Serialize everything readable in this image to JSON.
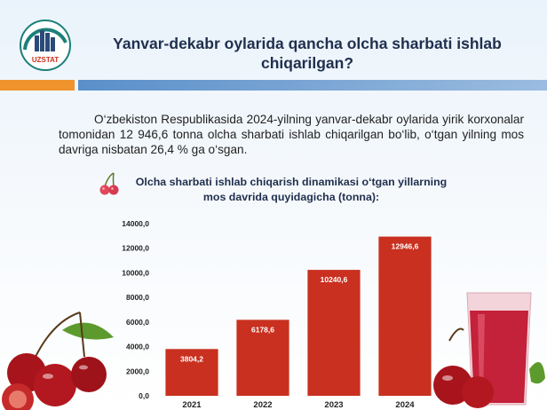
{
  "header": {
    "logo_text": "UZSTAT",
    "title": "Yanvar-dekabr oylarida qancha olcha sharbati ishlab chiqarilgan?"
  },
  "intro": {
    "text": "O‘zbekiston Respublikasida 2024-yilning yanvar-dekabr oylarida yirik korxonalar tomonidan 12 946,6 tonna olcha sharbati ishlab chiqarilgan bo‘lib, o‘tgan yilning mos davriga nisbatan 26,4 % ga o‘sgan."
  },
  "colors": {
    "bar": "#c9301f",
    "accent_orange": "#f0932c",
    "accent_blue": "#5a8fc9",
    "title": "#1f2f4d"
  },
  "chart_data": {
    "type": "bar",
    "title": "Olcha sharbati ishlab chiqarish dinamikasi o‘tgan yillarning mos davrida quyidagicha (tonna):",
    "categories": [
      "2021",
      "2022",
      "2023",
      "2024"
    ],
    "values": [
      3804.2,
      6178.6,
      10240.6,
      12946.6
    ],
    "value_labels": [
      "3804,2",
      "6178,6",
      "10240,6",
      "12946,6"
    ],
    "ylim": [
      0,
      14000
    ],
    "yticks": [
      "0,0",
      "2000,0",
      "4000,0",
      "6000,0",
      "8000,0",
      "10000,0",
      "12000,0",
      "14000,0"
    ],
    "ytick_values": [
      0,
      2000,
      4000,
      6000,
      8000,
      10000,
      12000,
      14000
    ],
    "grid": false,
    "xlabel": "",
    "ylabel": ""
  }
}
